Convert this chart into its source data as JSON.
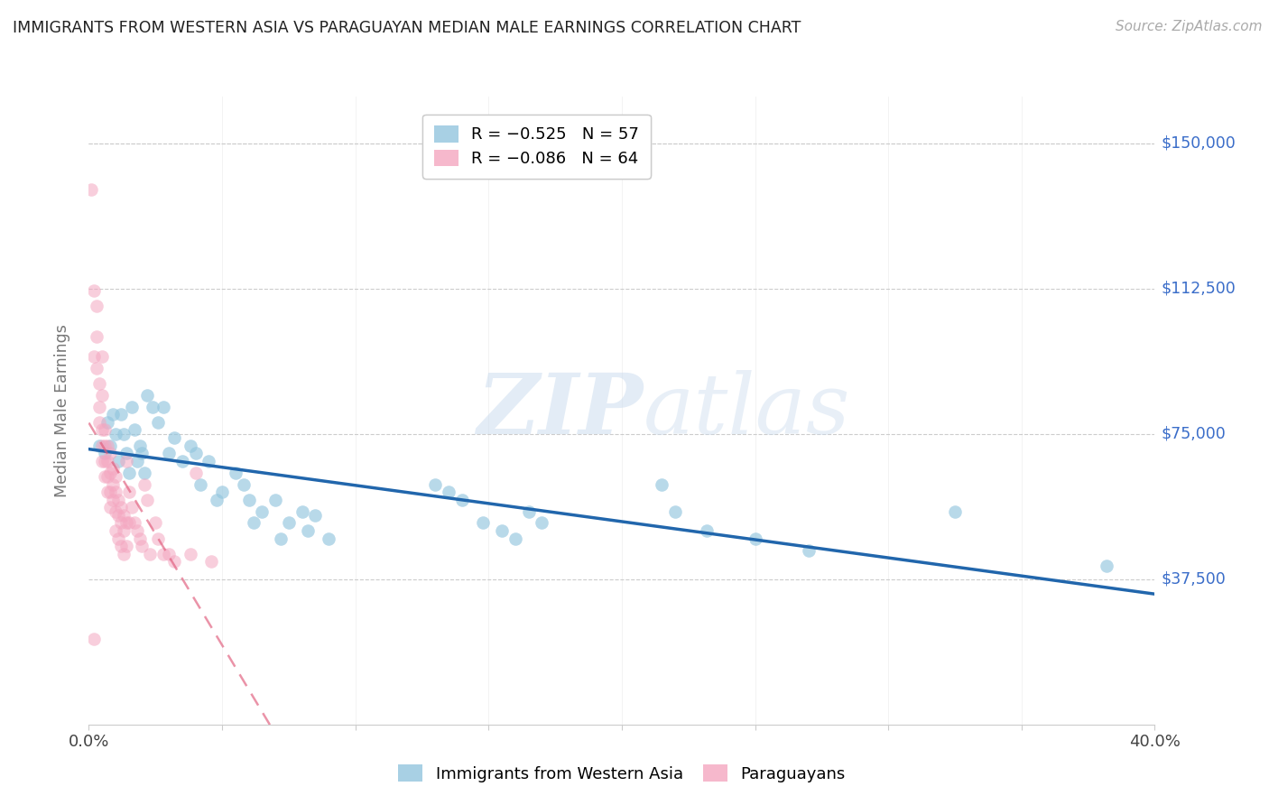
{
  "title": "IMMIGRANTS FROM WESTERN ASIA VS PARAGUAYAN MEDIAN MALE EARNINGS CORRELATION CHART",
  "source": "Source: ZipAtlas.com",
  "ylabel": "Median Male Earnings",
  "yticks": [
    0,
    37500,
    75000,
    112500,
    150000
  ],
  "ymin": 0,
  "ymax": 162000,
  "xmin": 0.0,
  "xmax": 0.4,
  "blue_color": "#92c5de",
  "pink_color": "#f4a6c0",
  "blue_line_color": "#2166ac",
  "pink_line_color": "#e05a7a",
  "ytick_color": "#3a6dc9",
  "grid_color": "#cccccc",
  "legend_R_labels": [
    "R = −0.525   N = 57",
    "R = −0.086   N = 64"
  ],
  "legend_labels": [
    "Immigrants from Western Asia",
    "Paraguayans"
  ],
  "blue_scatter": [
    [
      0.004,
      72000
    ],
    [
      0.006,
      70000
    ],
    [
      0.007,
      78000
    ],
    [
      0.008,
      72000
    ],
    [
      0.009,
      80000
    ],
    [
      0.01,
      75000
    ],
    [
      0.011,
      68000
    ],
    [
      0.012,
      80000
    ],
    [
      0.013,
      75000
    ],
    [
      0.014,
      70000
    ],
    [
      0.015,
      65000
    ],
    [
      0.016,
      82000
    ],
    [
      0.017,
      76000
    ],
    [
      0.018,
      68000
    ],
    [
      0.019,
      72000
    ],
    [
      0.02,
      70000
    ],
    [
      0.021,
      65000
    ],
    [
      0.022,
      85000
    ],
    [
      0.024,
      82000
    ],
    [
      0.026,
      78000
    ],
    [
      0.028,
      82000
    ],
    [
      0.03,
      70000
    ],
    [
      0.032,
      74000
    ],
    [
      0.035,
      68000
    ],
    [
      0.038,
      72000
    ],
    [
      0.04,
      70000
    ],
    [
      0.042,
      62000
    ],
    [
      0.045,
      68000
    ],
    [
      0.048,
      58000
    ],
    [
      0.05,
      60000
    ],
    [
      0.055,
      65000
    ],
    [
      0.058,
      62000
    ],
    [
      0.06,
      58000
    ],
    [
      0.062,
      52000
    ],
    [
      0.065,
      55000
    ],
    [
      0.07,
      58000
    ],
    [
      0.072,
      48000
    ],
    [
      0.075,
      52000
    ],
    [
      0.08,
      55000
    ],
    [
      0.082,
      50000
    ],
    [
      0.085,
      54000
    ],
    [
      0.09,
      48000
    ],
    [
      0.13,
      62000
    ],
    [
      0.135,
      60000
    ],
    [
      0.14,
      58000
    ],
    [
      0.148,
      52000
    ],
    [
      0.155,
      50000
    ],
    [
      0.16,
      48000
    ],
    [
      0.165,
      55000
    ],
    [
      0.17,
      52000
    ],
    [
      0.215,
      62000
    ],
    [
      0.22,
      55000
    ],
    [
      0.232,
      50000
    ],
    [
      0.25,
      48000
    ],
    [
      0.27,
      45000
    ],
    [
      0.325,
      55000
    ],
    [
      0.382,
      41000
    ]
  ],
  "pink_scatter": [
    [
      0.001,
      138000
    ],
    [
      0.002,
      112000
    ],
    [
      0.002,
      95000
    ],
    [
      0.003,
      108000
    ],
    [
      0.003,
      100000
    ],
    [
      0.003,
      92000
    ],
    [
      0.004,
      88000
    ],
    [
      0.004,
      82000
    ],
    [
      0.004,
      78000
    ],
    [
      0.005,
      95000
    ],
    [
      0.005,
      85000
    ],
    [
      0.005,
      76000
    ],
    [
      0.005,
      72000
    ],
    [
      0.005,
      68000
    ],
    [
      0.006,
      76000
    ],
    [
      0.006,
      72000
    ],
    [
      0.006,
      68000
    ],
    [
      0.006,
      64000
    ],
    [
      0.007,
      72000
    ],
    [
      0.007,
      68000
    ],
    [
      0.007,
      64000
    ],
    [
      0.007,
      60000
    ],
    [
      0.008,
      70000
    ],
    [
      0.008,
      65000
    ],
    [
      0.008,
      60000
    ],
    [
      0.008,
      56000
    ],
    [
      0.009,
      66000
    ],
    [
      0.009,
      62000
    ],
    [
      0.009,
      58000
    ],
    [
      0.01,
      64000
    ],
    [
      0.01,
      60000
    ],
    [
      0.01,
      55000
    ],
    [
      0.01,
      50000
    ],
    [
      0.011,
      58000
    ],
    [
      0.011,
      54000
    ],
    [
      0.011,
      48000
    ],
    [
      0.012,
      56000
    ],
    [
      0.012,
      52000
    ],
    [
      0.012,
      46000
    ],
    [
      0.013,
      54000
    ],
    [
      0.013,
      50000
    ],
    [
      0.013,
      44000
    ],
    [
      0.014,
      68000
    ],
    [
      0.014,
      52000
    ],
    [
      0.014,
      46000
    ],
    [
      0.015,
      60000
    ],
    [
      0.015,
      52000
    ],
    [
      0.016,
      56000
    ],
    [
      0.017,
      52000
    ],
    [
      0.018,
      50000
    ],
    [
      0.019,
      48000
    ],
    [
      0.02,
      46000
    ],
    [
      0.021,
      62000
    ],
    [
      0.022,
      58000
    ],
    [
      0.023,
      44000
    ],
    [
      0.025,
      52000
    ],
    [
      0.026,
      48000
    ],
    [
      0.028,
      44000
    ],
    [
      0.03,
      44000
    ],
    [
      0.032,
      42000
    ],
    [
      0.038,
      44000
    ],
    [
      0.04,
      65000
    ],
    [
      0.046,
      42000
    ],
    [
      0.002,
      22000
    ]
  ]
}
